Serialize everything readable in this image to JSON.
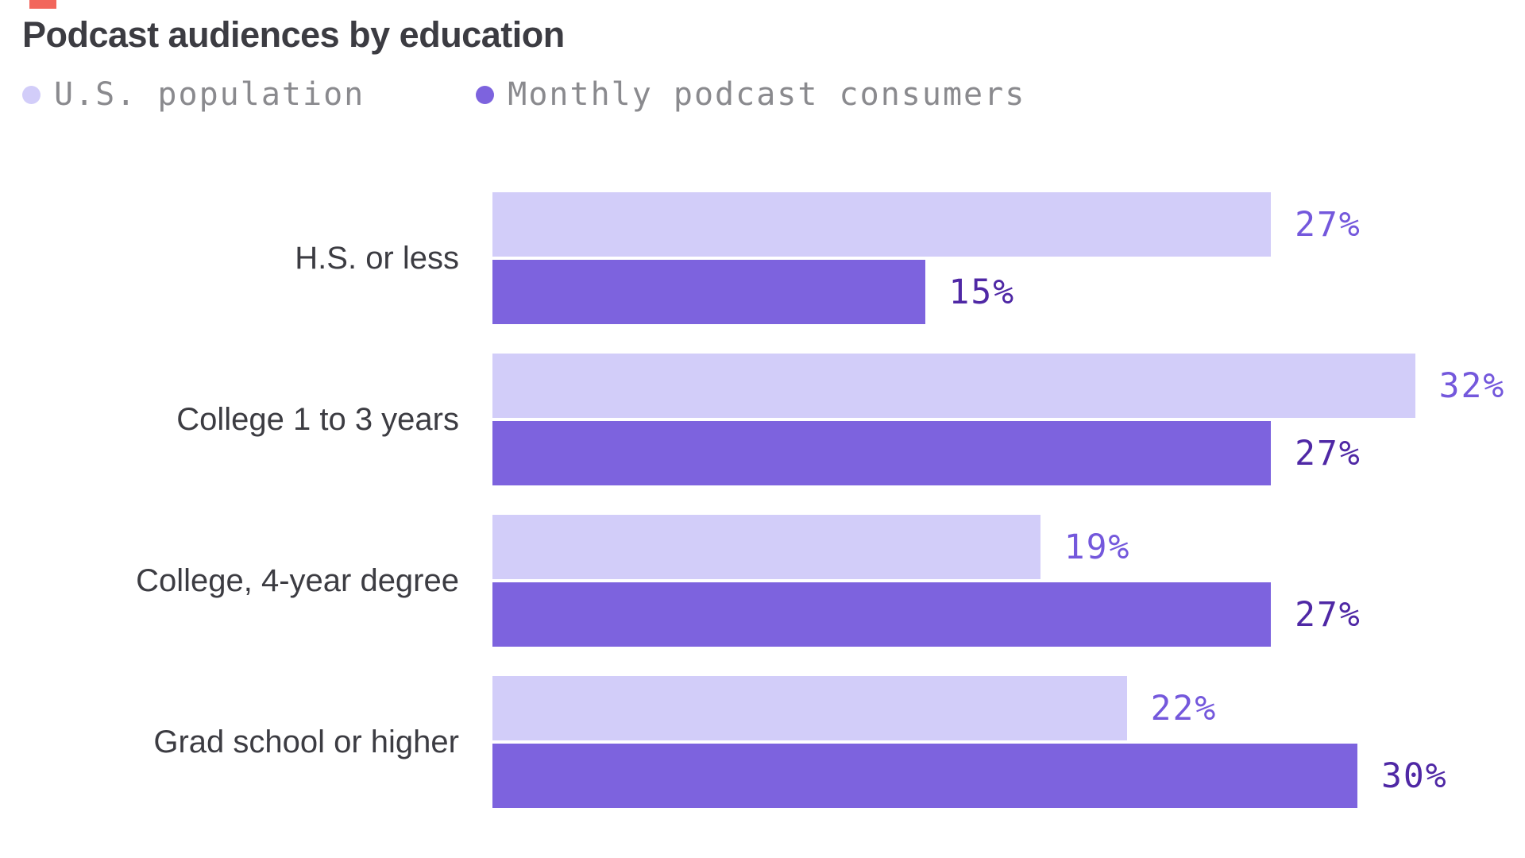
{
  "title": "Podcast audiences by education",
  "accent_mark_color": "#F2665C",
  "colors": {
    "light_bar": "#D2CDF9",
    "dark_bar": "#7D63DE",
    "light_label": "#7458DC",
    "dark_label": "#4F28A5",
    "text": "#3C3C42",
    "legend_text": "#8A8A8E"
  },
  "legend": [
    {
      "label": "U.S. population",
      "color": "#D2CDF9"
    },
    {
      "label": "Monthly podcast consumers",
      "color": "#7D63DE"
    }
  ],
  "chart_data": {
    "type": "bar",
    "orientation": "horizontal",
    "title": "Podcast audiences by education",
    "categories": [
      "H.S. or less",
      "College 1 to 3 years",
      "College, 4-year degree",
      "Grad school or higher"
    ],
    "series": [
      {
        "name": "U.S. population",
        "values": [
          27,
          32,
          19,
          22
        ]
      },
      {
        "name": "Monthly podcast consumers",
        "values": [
          15,
          27,
          27,
          30
        ]
      }
    ],
    "unit": "%",
    "value_labels": {
      "us_population": [
        "27%",
        "32%",
        "19%",
        "22%"
      ],
      "monthly_podcast_consumers": [
        "15%",
        "27%",
        "27%",
        "30%"
      ]
    },
    "xlim": [
      0,
      35
    ],
    "grid": false,
    "legend_position": "top"
  }
}
